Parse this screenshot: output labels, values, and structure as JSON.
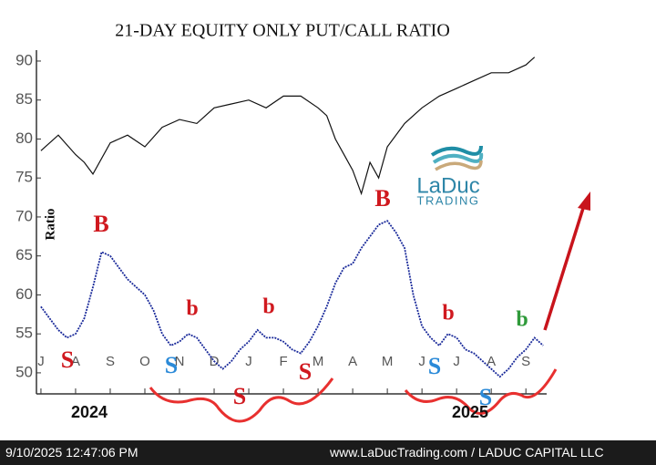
{
  "chart_data": {
    "type": "line",
    "title": "21-DAY EQUITY ONLY PUT/CALL RATIO",
    "y_label": "Ratio",
    "xlim": [
      -0.13,
      14.6
    ],
    "xticks": [
      {
        "value": 0,
        "label": "J"
      },
      {
        "value": 1,
        "label": "A"
      },
      {
        "value": 2,
        "label": "S"
      },
      {
        "value": 3,
        "label": "O"
      },
      {
        "value": 4,
        "label": "N"
      },
      {
        "value": 5,
        "label": "D"
      },
      {
        "value": 6,
        "label": "J"
      },
      {
        "value": 7,
        "label": "F"
      },
      {
        "value": 8,
        "label": "M"
      },
      {
        "value": 9,
        "label": "A"
      },
      {
        "value": 10,
        "label": "M"
      },
      {
        "value": 11,
        "label": "J"
      },
      {
        "value": 12,
        "label": "J"
      },
      {
        "value": 13,
        "label": "A"
      },
      {
        "value": 14,
        "label": "S"
      }
    ],
    "ylim": [
      47.3,
      91.4
    ],
    "yticks": [
      50,
      55,
      60,
      65,
      70,
      75,
      80,
      85,
      90
    ],
    "series": [
      {
        "color": "#111111",
        "x": [
          0,
          0.5,
          1,
          1.25,
          1.5,
          2,
          2.5,
          3,
          3.5,
          4,
          4.5,
          5,
          5.5,
          6,
          6.5,
          7,
          7.5,
          8,
          8.25,
          8.5,
          8.75,
          9,
          9.25,
          9.5,
          9.75,
          10,
          10.5,
          11,
          11.5,
          12,
          12.5,
          13,
          13.5,
          14,
          14.25
        ],
        "values": [
          78.5,
          80.5,
          78,
          77,
          75.5,
          79.5,
          80.5,
          79,
          81.5,
          82.5,
          82,
          84,
          84.5,
          85,
          84,
          85.5,
          85.5,
          84,
          83,
          80,
          78,
          76,
          73,
          77,
          75,
          79,
          82,
          84,
          85.5,
          86.5,
          87.5,
          88.5,
          88.5,
          89.5,
          90.5
        ]
      },
      {
        "color": "#1a2a9a",
        "x": [
          0,
          0.25,
          0.5,
          0.75,
          1,
          1.25,
          1.5,
          1.75,
          2,
          2.25,
          2.5,
          2.75,
          3,
          3.25,
          3.5,
          3.75,
          4,
          4.25,
          4.5,
          4.75,
          5,
          5.25,
          5.5,
          5.75,
          6,
          6.25,
          6.5,
          6.75,
          7,
          7.25,
          7.5,
          7.75,
          8,
          8.25,
          8.5,
          8.75,
          9,
          9.25,
          9.5,
          9.75,
          10,
          10.25,
          10.5,
          10.75,
          11,
          11.25,
          11.5,
          11.75,
          12,
          12.25,
          12.5,
          12.75,
          13,
          13.25,
          13.5,
          13.75,
          14,
          14.25,
          14.5
        ],
        "values": [
          58.5,
          57,
          55.5,
          54.5,
          55,
          57,
          61,
          65.5,
          65,
          63.5,
          62,
          61,
          60,
          58,
          55,
          53.5,
          54,
          55,
          54.5,
          53,
          51.5,
          50.5,
          51.5,
          53,
          54,
          55.5,
          54.5,
          54.5,
          54,
          53,
          52.5,
          54,
          56,
          58.5,
          61.5,
          63.5,
          64,
          66,
          67.5,
          69,
          69.5,
          68,
          66,
          60,
          56,
          54.5,
          53.5,
          55,
          54.5,
          53,
          52.5,
          51.5,
          50.5,
          49.5,
          50.5,
          52,
          53,
          54.5,
          53.5
        ]
      }
    ],
    "annotations": [
      {
        "text": "S",
        "color": "#d0191f"
      },
      {
        "text": "B",
        "color": "#d0191f"
      },
      {
        "text": "S",
        "color": "#2b8ad8"
      },
      {
        "text": "b",
        "color": "#d0191f"
      },
      {
        "text": "S",
        "color": "#d0191f"
      },
      {
        "text": "b",
        "color": "#d0191f"
      },
      {
        "text": "S",
        "color": "#d0191f"
      },
      {
        "text": "B",
        "color": "#d0191f"
      },
      {
        "text": "S",
        "color": "#2b8ad8"
      },
      {
        "text": "b",
        "color": "#d0191f"
      },
      {
        "text": "S",
        "color": "#2b8ad8"
      },
      {
        "text": "b",
        "color": "#2f9a3a"
      }
    ],
    "years": [
      "2024",
      "2025"
    ]
  },
  "logo": {
    "name": "LaDuc",
    "sub": "TRADING"
  },
  "footer": {
    "timestamp": "9/10/2025 12:47:06 PM",
    "source": "www.LaDucTrading.com / LADUC CAPITAL LLC"
  }
}
